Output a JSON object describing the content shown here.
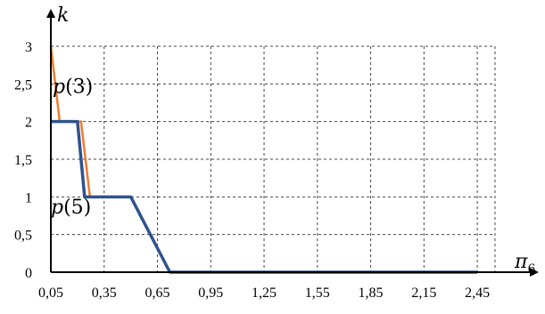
{
  "chart_data": {
    "type": "line",
    "xlabel": "π",
    "xlabel_sub": "6",
    "ylabel": "k",
    "xlim": [
      0.05,
      2.55
    ],
    "ylim": [
      0,
      3
    ],
    "x_ticks": [
      0.05,
      0.35,
      0.65,
      0.95,
      1.25,
      1.55,
      1.85,
      2.15,
      2.45
    ],
    "x_tick_labels": [
      "0,05",
      "0,35",
      "0,65",
      "0,95",
      "1,25",
      "1,55",
      "1,85",
      "2,15",
      "2,45"
    ],
    "y_ticks": [
      0,
      0.5,
      1,
      1.5,
      2,
      2.5,
      3
    ],
    "y_tick_labels": [
      "0",
      "0,5",
      "1",
      "1,5",
      "2",
      "2,5",
      "3"
    ],
    "grid": true,
    "series": [
      {
        "name": "p(3)",
        "color": "#ED7D31",
        "x": [
          0.05,
          0.1,
          0.22,
          0.27,
          0.27
        ],
        "y": [
          3,
          2,
          2,
          1,
          0.99
        ]
      },
      {
        "name": "p(5)",
        "color": "#2F528F",
        "x": [
          0.05,
          0.2,
          0.24,
          0.5,
          0.72,
          2.45
        ],
        "y": [
          2,
          2,
          1,
          1,
          0,
          0
        ]
      }
    ],
    "annotations": [
      {
        "prefix": "p",
        "text": "(3)",
        "x": 0.06,
        "y": 2.38
      },
      {
        "prefix": "p",
        "text": "(5)",
        "x": 0.05,
        "y": 0.78
      }
    ]
  }
}
